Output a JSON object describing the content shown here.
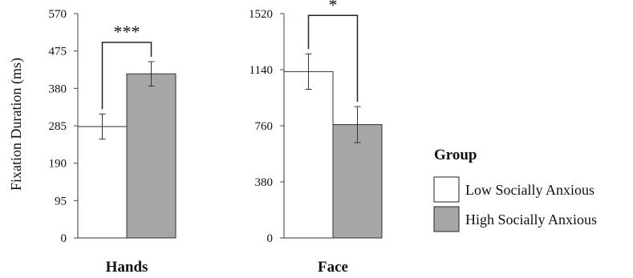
{
  "chart_data": {
    "type": "bar",
    "ylabel": "Fixation Duration (ms)",
    "legend": {
      "title": "Group",
      "position": "right",
      "entries": [
        {
          "label": "Low Socially Anxious",
          "color": "#ffffff"
        },
        {
          "label": "High Socially Anxious",
          "color": "#a6a6a6"
        }
      ]
    },
    "panels": [
      {
        "title": "Hands",
        "ylim": [
          0,
          570
        ],
        "yticks": [
          "0",
          "95",
          "190",
          "285",
          "380",
          "475",
          "570"
        ],
        "ytick_values": [
          0,
          95,
          190,
          285,
          380,
          475,
          570
        ],
        "significance": "***",
        "bars": [
          {
            "group": "Low Socially Anxious",
            "value": 283,
            "error": 32
          },
          {
            "group": "High Socially Anxious",
            "value": 417,
            "error": 31
          }
        ]
      },
      {
        "title": "Face",
        "ylim": [
          0,
          1520
        ],
        "yticks": [
          "0",
          "380",
          "760",
          "1140",
          "1520"
        ],
        "ytick_values": [
          0,
          380,
          760,
          1140,
          1520
        ],
        "significance": "*",
        "bars": [
          {
            "group": "Low Socially Anxious",
            "value": 1127,
            "error": 120
          },
          {
            "group": "High Socially Anxious",
            "value": 768,
            "error": 122
          }
        ]
      }
    ]
  }
}
